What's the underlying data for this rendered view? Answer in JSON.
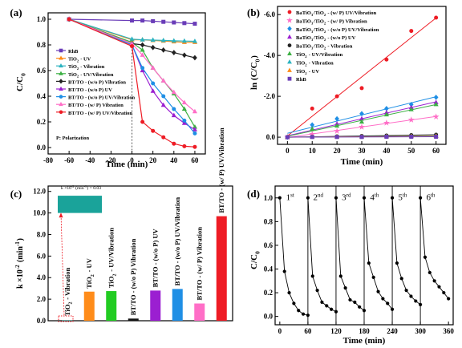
{
  "chart_data": [
    {
      "type": "line",
      "panel": "(a)",
      "xlabel": "Time (min)",
      "ylabel": "C/C0",
      "xlim": [
        -80,
        70
      ],
      "ylim": [
        -0.05,
        1.05
      ],
      "xticks": [
        -80,
        -60,
        -40,
        -20,
        0,
        20,
        40,
        60
      ],
      "yticks": [
        0.0,
        0.2,
        0.4,
        0.6,
        0.8,
        1.0
      ],
      "x": [
        -60,
        0,
        10,
        20,
        30,
        40,
        50,
        60
      ],
      "legend_position": "left",
      "annotation": "P: Polarization",
      "series": [
        {
          "name": "RhB",
          "color": "#6a3db8",
          "marker": "square",
          "values": [
            1.0,
            0.99,
            0.99,
            0.985,
            0.98,
            0.975,
            0.97,
            0.965
          ]
        },
        {
          "name": "TiO2 - UV",
          "color": "#ff8c1a",
          "marker": "triangle",
          "values": [
            1.0,
            0.84,
            0.84,
            0.835,
            0.83,
            0.825,
            0.82,
            0.82
          ]
        },
        {
          "name": "TiO2 - Vibration",
          "color": "#2bb3c0",
          "marker": "triangle",
          "values": [
            1.0,
            0.845,
            0.84,
            0.838,
            0.835,
            0.832,
            0.83,
            0.828
          ]
        },
        {
          "name": "TiO2 - UV/Vibration",
          "color": "#3cb043",
          "marker": "triangle",
          "values": [
            1.0,
            0.82,
            0.76,
            0.62,
            0.52,
            0.42,
            0.3,
            0.16
          ]
        },
        {
          "name": "BT/TO - (w/o P) Vibration",
          "color": "#222222",
          "marker": "diamond",
          "values": [
            1.0,
            0.81,
            0.8,
            0.78,
            0.76,
            0.74,
            0.72,
            0.7
          ]
        },
        {
          "name": "BT/TO - (w/o P) UV",
          "color": "#9b1fd1",
          "marker": "triangle",
          "values": [
            1.0,
            0.8,
            0.6,
            0.44,
            0.33,
            0.25,
            0.19,
            0.14
          ]
        },
        {
          "name": "BT/TO - (w/o P) UV/Vibration",
          "color": "#1f8fe5",
          "marker": "circle",
          "values": [
            1.0,
            0.8,
            0.62,
            0.5,
            0.4,
            0.3,
            0.21,
            0.11
          ]
        },
        {
          "name": "BT/TO - (w/ P) Vibration",
          "color": "#ff6ec7",
          "marker": "triangle",
          "values": [
            1.0,
            0.81,
            0.72,
            0.62,
            0.52,
            0.43,
            0.35,
            0.28
          ]
        },
        {
          "name": "BT/TO - (w/ P) UV/Vibration",
          "color": "#ee1c25",
          "marker": "circle",
          "values": [
            1.0,
            0.79,
            0.2,
            0.13,
            0.08,
            0.03,
            0.01,
            0.005
          ]
        }
      ]
    },
    {
      "type": "scatter",
      "panel": "(b)",
      "xlabel": "Time (min)",
      "ylabel": "ln (C/C0)",
      "xlim": [
        -4,
        64
      ],
      "ylim": [
        0.35,
        -6.4
      ],
      "xticks": [
        0,
        10,
        20,
        30,
        40,
        50,
        60
      ],
      "yticks": [
        0.0,
        -2.0,
        -4.0,
        -6.0
      ],
      "x": [
        0,
        10,
        20,
        30,
        40,
        50,
        60
      ],
      "legend_position": "top-left",
      "series": [
        {
          "name": "BaTiO3/TiO2 - (w/ P) UV/Vibration",
          "color": "#ee1c25",
          "marker": "circle",
          "values": [
            0,
            -1.4,
            -2.0,
            -2.4,
            -3.8,
            -5.2,
            -5.85
          ]
        },
        {
          "name": "BaTiO3/TiO2 - (w/ P) Vibration",
          "color": "#ff6ec7",
          "marker": "star",
          "values": [
            0,
            -0.15,
            -0.3,
            -0.5,
            -0.7,
            -0.85,
            -1.0
          ]
        },
        {
          "name": "BaTiO3/TiO2 - (w/o P) UV/Vibration",
          "color": "#1f8fe5",
          "marker": "diamond",
          "values": [
            0,
            -0.6,
            -0.9,
            -1.15,
            -1.4,
            -1.6,
            -1.95
          ]
        },
        {
          "name": "BaTiO3/TiO2 - (w/o P) UV",
          "color": "#9b1fd1",
          "marker": "triangle",
          "values": [
            0,
            -0.4,
            -0.65,
            -0.9,
            -1.2,
            -1.45,
            -1.7
          ]
        },
        {
          "name": "BaTiO3/TiO2 - Vibration",
          "color": "#222222",
          "marker": "circle",
          "values": [
            0,
            -0.02,
            -0.04,
            -0.06,
            -0.08,
            -0.1,
            -0.12
          ]
        },
        {
          "name": "TiO2 - UV/Vibration",
          "color": "#3cb043",
          "marker": "triangle",
          "values": [
            0,
            -0.4,
            -0.55,
            -0.75,
            -1.1,
            -1.35,
            -1.6
          ]
        },
        {
          "name": "TiO2 - Vibration",
          "color": "#2bb3c0",
          "marker": "triangle",
          "values": [
            0,
            -0.01,
            -0.02,
            -0.03,
            -0.04,
            -0.05,
            -0.06
          ]
        },
        {
          "name": "TiO2 - UV",
          "color": "#ff8c1a",
          "marker": "triangle",
          "values": [
            0,
            -0.01,
            -0.02,
            -0.02,
            -0.03,
            -0.04,
            -0.05
          ]
        },
        {
          "name": "RhB",
          "color": "#6a3db8",
          "marker": "square",
          "values": [
            0,
            -0.01,
            -0.01,
            -0.01,
            -0.02,
            -0.02,
            -0.02
          ]
        }
      ]
    },
    {
      "type": "bar",
      "panel": "(c)",
      "ylabel": "k ×10-2 (min-1)",
      "ylim": [
        0,
        12.5
      ],
      "yticks": [
        0.0,
        2.0,
        4.0,
        6.0,
        8.0,
        10.0,
        12.0
      ],
      "inset_label": "k ×10-2 (min-1) = 0.03",
      "categories": [
        "TiO2 - Vibration",
        "TiO2 - UV",
        "TiO2 - UV/Vibration",
        "BT/TO - (w/o P) Vibration",
        "BT/TO - (w/o P) UV",
        "BT/TO - (w/o P) UV/Vibration",
        "BT/TO - (w/ P) Vibration",
        "BT/TO - (w/ P) UV/Vibration"
      ],
      "values": [
        0.03,
        2.7,
        2.75,
        0.2,
        2.8,
        2.95,
        1.6,
        9.7
      ],
      "colors": [
        "#1aa39a",
        "#ff8c1a",
        "#22cc22",
        "#111111",
        "#9b1fd1",
        "#1f8fe5",
        "#ff6ec7",
        "#ee1c25"
      ]
    },
    {
      "type": "line",
      "panel": "(d)",
      "xlabel": "Time (min)",
      "ylabel": "C/C0",
      "xlim": [
        -10,
        370
      ],
      "ylim": [
        -0.07,
        1.1
      ],
      "xticks": [
        0,
        60,
        120,
        180,
        240,
        300,
        360
      ],
      "yticks": [
        0.0,
        0.2,
        0.4,
        0.6,
        0.8,
        1.0
      ],
      "cycle_labels": [
        {
          "num": "1",
          "sup": "st"
        },
        {
          "num": "2",
          "sup": "nd"
        },
        {
          "num": "3",
          "sup": "rd"
        },
        {
          "num": "4",
          "sup": "th"
        },
        {
          "num": "5",
          "sup": "th"
        },
        {
          "num": "6",
          "sup": "th"
        }
      ],
      "cycle_x": [
        0,
        10,
        20,
        30,
        40,
        50,
        60
      ],
      "cycles": [
        [
          1.0,
          0.38,
          0.2,
          0.11,
          0.05,
          0.02,
          0.01
        ],
        [
          1.0,
          0.34,
          0.22,
          0.12,
          0.09,
          0.06,
          0.04
        ],
        [
          1.0,
          0.34,
          0.24,
          0.14,
          0.12,
          0.08,
          0.05
        ],
        [
          1.0,
          0.45,
          0.33,
          0.21,
          0.15,
          0.11,
          0.06
        ],
        [
          1.0,
          0.45,
          0.32,
          0.22,
          0.17,
          0.13,
          0.1
        ],
        [
          1.0,
          0.5,
          0.37,
          0.3,
          0.25,
          0.2,
          0.15
        ]
      ]
    }
  ]
}
